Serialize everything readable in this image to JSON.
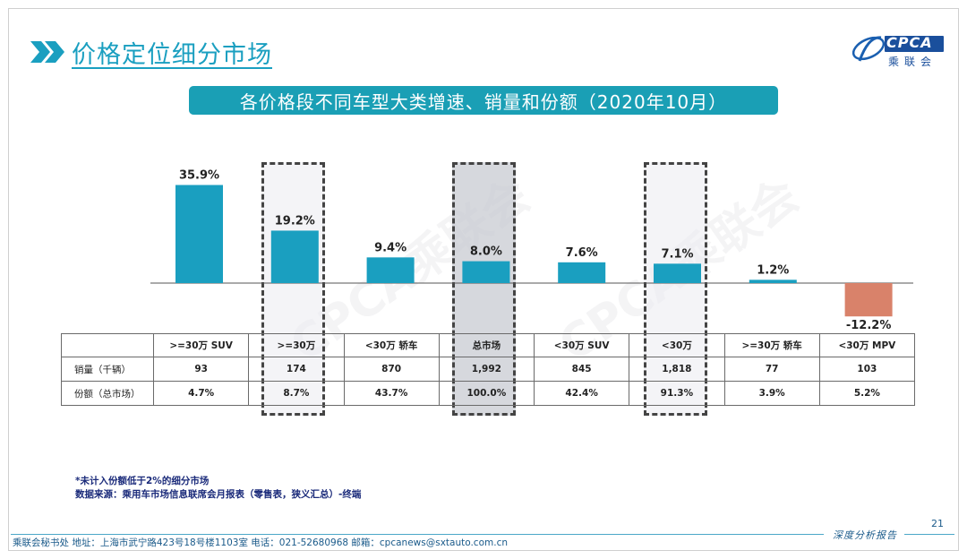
{
  "header": {
    "title": "价格定位细分市场",
    "logo_text": "CPCA",
    "logo_sub": "乘联会"
  },
  "banner": {
    "text": "各价格段不同车型大类增速、销量和份额（2020年10月）"
  },
  "watermark": "CPCA乘联会",
  "chart_data": {
    "type": "bar",
    "categories": [
      ">=30万 SUV",
      ">=30万",
      "<30万 轿车",
      "总市场",
      "<30万 SUV",
      "<30万",
      ">=30万 轿车",
      "<30万 MPV"
    ],
    "values": [
      35.9,
      19.2,
      9.4,
      8.0,
      7.6,
      7.1,
      1.2,
      -12.2
    ],
    "value_labels": [
      "35.9%",
      "19.2%",
      "9.4%",
      "8.0%",
      "7.6%",
      "7.1%",
      "1.2%",
      "-12.2%"
    ],
    "colors": {
      "positive": "#1a9fc0",
      "negative": "#d9826a"
    },
    "highlighted": [
      ">=30万",
      "总市场",
      "<30万"
    ],
    "ylim": [
      -12.2,
      35.9
    ],
    "grid": false
  },
  "table": {
    "header": [
      "",
      ">=30万 SUV",
      ">=30万",
      "<30万 轿车",
      "总市场",
      "<30万 SUV",
      "<30万",
      ">=30万 轿车",
      "<30万 MPV"
    ],
    "rows": [
      {
        "label": "销量（千辆）",
        "values": [
          "93",
          "174",
          "870",
          "1,992",
          "845",
          "1,818",
          "77",
          "103"
        ]
      },
      {
        "label": "份额（总市场）",
        "values": [
          "4.7%",
          "8.7%",
          "43.7%",
          "100.0%",
          "42.4%",
          "91.3%",
          "3.9%",
          "5.2%"
        ]
      }
    ]
  },
  "notes": {
    "line1": "*未计入份额低于2%的细分市场",
    "line2": "数据来源：乘用车市场信息联席会月报表（零售表，狭义汇总）-终端"
  },
  "footer": {
    "address": "乘联会秘书处   地址：上海市武宁路423号18号楼1103室  电话：021-52680968   邮箱：cpcanews@sxtauto.com.cn",
    "report_label": "深度分析报告",
    "page_number": "21"
  }
}
